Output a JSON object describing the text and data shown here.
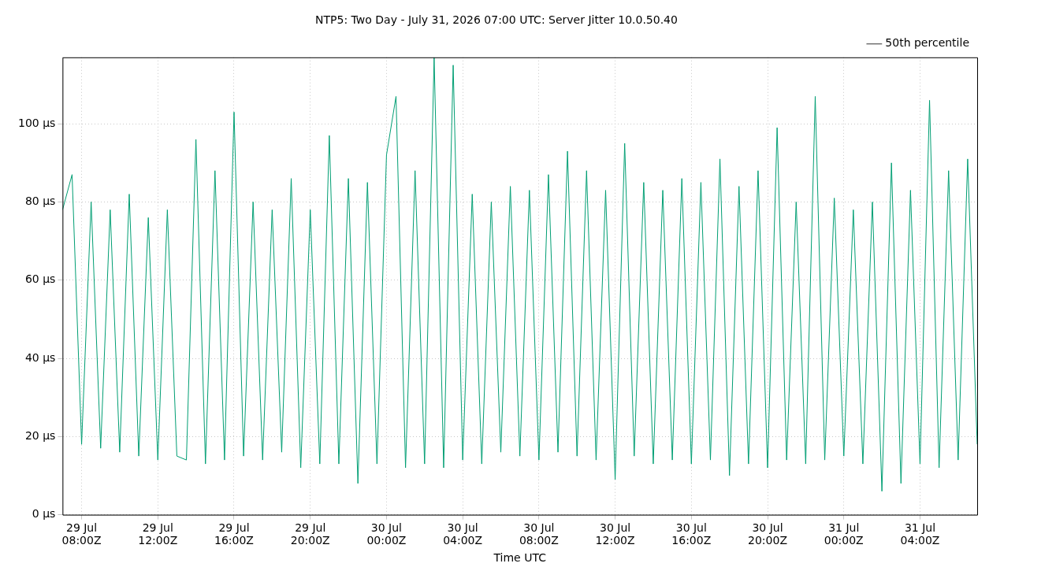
{
  "chart_data": {
    "type": "line",
    "title": "NTP5: Two Day - July 31, 2026 07:00 UTC: Server Jitter 10.0.50.40",
    "xlabel": "Time UTC",
    "x": [
      "2026-07-29T07:00",
      "2026-07-29T07:30",
      "2026-07-29T08:00",
      "2026-07-29T08:30",
      "2026-07-29T09:00",
      "2026-07-29T09:30",
      "2026-07-29T10:00",
      "2026-07-29T10:30",
      "2026-07-29T11:00",
      "2026-07-29T11:30",
      "2026-07-29T12:00",
      "2026-07-29T12:30",
      "2026-07-29T13:00",
      "2026-07-29T13:30",
      "2026-07-29T14:00",
      "2026-07-29T14:30",
      "2026-07-29T15:00",
      "2026-07-29T15:30",
      "2026-07-29T16:00",
      "2026-07-29T16:30",
      "2026-07-29T17:00",
      "2026-07-29T17:30",
      "2026-07-29T18:00",
      "2026-07-29T18:30",
      "2026-07-29T19:00",
      "2026-07-29T19:30",
      "2026-07-29T20:00",
      "2026-07-29T20:30",
      "2026-07-29T21:00",
      "2026-07-29T21:30",
      "2026-07-29T22:00",
      "2026-07-29T22:30",
      "2026-07-29T23:00",
      "2026-07-29T23:30",
      "2026-07-30T00:00",
      "2026-07-30T00:30",
      "2026-07-30T01:00",
      "2026-07-30T01:30",
      "2026-07-30T02:00",
      "2026-07-30T02:30",
      "2026-07-30T03:00",
      "2026-07-30T03:30",
      "2026-07-30T04:00",
      "2026-07-30T04:30",
      "2026-07-30T05:00",
      "2026-07-30T05:30",
      "2026-07-30T06:00",
      "2026-07-30T06:30",
      "2026-07-30T07:00",
      "2026-07-30T07:30",
      "2026-07-30T08:00",
      "2026-07-30T08:30",
      "2026-07-30T09:00",
      "2026-07-30T09:30",
      "2026-07-30T10:00",
      "2026-07-30T10:30",
      "2026-07-30T11:00",
      "2026-07-30T11:30",
      "2026-07-30T12:00",
      "2026-07-30T12:30",
      "2026-07-30T13:00",
      "2026-07-30T13:30",
      "2026-07-30T14:00",
      "2026-07-30T14:30",
      "2026-07-30T15:00",
      "2026-07-30T15:30",
      "2026-07-30T16:00",
      "2026-07-30T16:30",
      "2026-07-30T17:00",
      "2026-07-30T17:30",
      "2026-07-30T18:00",
      "2026-07-30T18:30",
      "2026-07-30T19:00",
      "2026-07-30T19:30",
      "2026-07-30T20:00",
      "2026-07-30T20:30",
      "2026-07-30T21:00",
      "2026-07-30T21:30",
      "2026-07-30T22:00",
      "2026-07-30T22:30",
      "2026-07-30T23:00",
      "2026-07-30T23:30",
      "2026-07-31T00:00",
      "2026-07-31T00:30",
      "2026-07-31T01:00",
      "2026-07-31T01:30",
      "2026-07-31T02:00",
      "2026-07-31T02:30",
      "2026-07-31T03:00",
      "2026-07-31T03:30",
      "2026-07-31T04:00",
      "2026-07-31T04:30",
      "2026-07-31T05:00",
      "2026-07-31T05:30",
      "2026-07-31T06:00",
      "2026-07-31T06:30",
      "2026-07-31T07:00"
    ],
    "series": [
      {
        "name": "50th percentile",
        "color": "#303030",
        "values": [
          null,
          null,
          null,
          null,
          null,
          null,
          null,
          null,
          null,
          null,
          null,
          null,
          null,
          null,
          null,
          null,
          null,
          null,
          null,
          null,
          null,
          null,
          null,
          null,
          null,
          null,
          null,
          null,
          null,
          null,
          null,
          null,
          null,
          null,
          null,
          null,
          null,
          null,
          null,
          null,
          null,
          null,
          null,
          null,
          null,
          null,
          null,
          null,
          null,
          null,
          null,
          null,
          null,
          null,
          null,
          null,
          null,
          null,
          null,
          null,
          null,
          null,
          null,
          null,
          null,
          null,
          null,
          null,
          null,
          null,
          null,
          null,
          null,
          null,
          null,
          null,
          null,
          null,
          null,
          null,
          null,
          null,
          null,
          null,
          null,
          null,
          null,
          null,
          null,
          null,
          null,
          null,
          null,
          null,
          null,
          null,
          null
        ]
      },
      {
        "color": "#009e73",
        "values": [
          78,
          87,
          18,
          80,
          17,
          78,
          16,
          82,
          15,
          76,
          14,
          78,
          15,
          14,
          96,
          13,
          88,
          14,
          103,
          15,
          80,
          14,
          78,
          16,
          86,
          12,
          78,
          13,
          97,
          13,
          86,
          8,
          85,
          13,
          92,
          107,
          12,
          88,
          13,
          117,
          12,
          115,
          14,
          82,
          13,
          80,
          16,
          84,
          15,
          83,
          14,
          87,
          16,
          93,
          15,
          88,
          14,
          83,
          9,
          95,
          15,
          85,
          13,
          83,
          14,
          86,
          13,
          85,
          14,
          91,
          10,
          84,
          13,
          88,
          12,
          99,
          14,
          80,
          13,
          107,
          14,
          81,
          15,
          78,
          13,
          80,
          6,
          90,
          8,
          83,
          13,
          106,
          12,
          88,
          14,
          91,
          18
        ]
      }
    ],
    "xlim": [
      "2026-07-29T07:00",
      "2026-07-31T07:00"
    ],
    "xticks": [
      {
        "value": "2026-07-29T08:00",
        "label": "29 Jul\n08:00Z"
      },
      {
        "value": "2026-07-29T12:00",
        "label": "29 Jul\n12:00Z"
      },
      {
        "value": "2026-07-29T16:00",
        "label": "29 Jul\n16:00Z"
      },
      {
        "value": "2026-07-29T20:00",
        "label": "29 Jul\n20:00Z"
      },
      {
        "value": "2026-07-30T00:00",
        "label": "30 Jul\n00:00Z"
      },
      {
        "value": "2026-07-30T04:00",
        "label": "30 Jul\n04:00Z"
      },
      {
        "value": "2026-07-30T08:00",
        "label": "30 Jul\n08:00Z"
      },
      {
        "value": "2026-07-30T12:00",
        "label": "30 Jul\n12:00Z"
      },
      {
        "value": "2026-07-30T16:00",
        "label": "30 Jul\n16:00Z"
      },
      {
        "value": "2026-07-30T20:00",
        "label": "30 Jul\n20:00Z"
      },
      {
        "value": "2026-07-31T00:00",
        "label": "31 Jul\n00:00Z"
      },
      {
        "value": "2026-07-31T04:00",
        "label": "31 Jul\n04:00Z"
      }
    ],
    "ylim": [
      0,
      117
    ],
    "yticks": [
      {
        "value": 0,
        "label": "0 µs"
      },
      {
        "value": 20,
        "label": "20 µs"
      },
      {
        "value": 40,
        "label": "40 µs"
      },
      {
        "value": 60,
        "label": "60 µs"
      },
      {
        "value": 80,
        "label": "80 µs"
      },
      {
        "value": 100,
        "label": "100 µs"
      }
    ],
    "grid": true,
    "legend": "top right",
    "marker": "none",
    "line_style": "solid"
  }
}
